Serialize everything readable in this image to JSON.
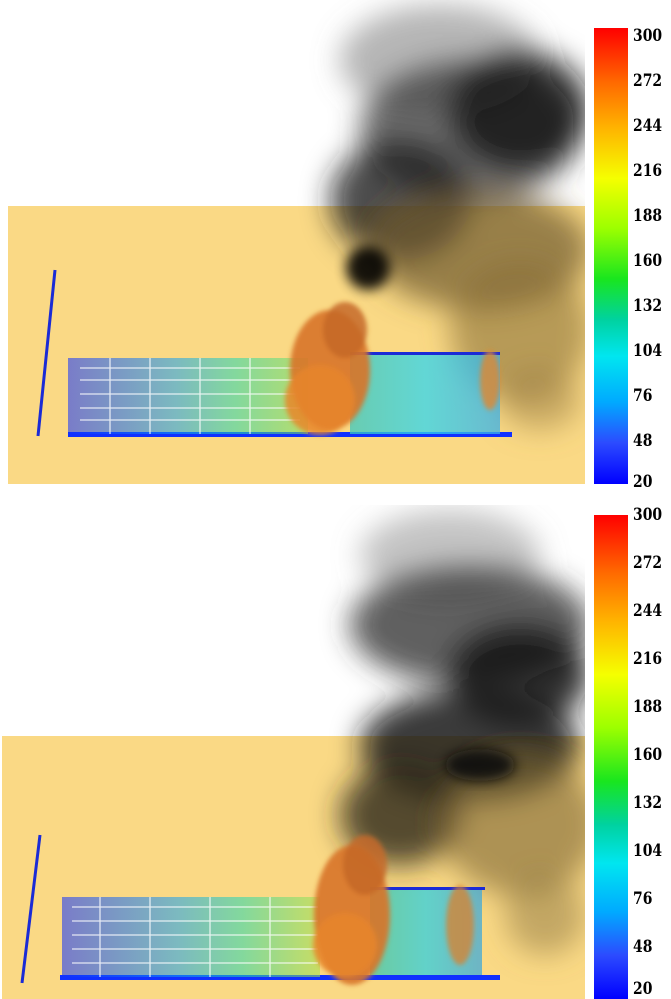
{
  "panels": [
    {
      "id": "top",
      "colorbar": {
        "ticks": [
          "300",
          "272",
          "244",
          "216",
          "188",
          "160",
          "132",
          "104",
          "76",
          "48",
          "20"
        ],
        "colors": [
          "#0000ff",
          "#00e6f0",
          "#19e61e",
          "#f5ff00",
          "#ff0000"
        ]
      }
    },
    {
      "id": "bottom",
      "colorbar": {
        "ticks": [
          "300",
          "272",
          "244",
          "216",
          "188",
          "160",
          "132",
          "104",
          "76",
          "48",
          "20"
        ],
        "colors": [
          "#0000ff",
          "#00e6f0",
          "#19e61e",
          "#f5ff00",
          "#ff0000"
        ]
      }
    }
  ],
  "palette": {
    "background": "#ffffff",
    "scene_floor": "#fad985",
    "smoke": "#1a1a1a",
    "flame": "#e0782a"
  }
}
